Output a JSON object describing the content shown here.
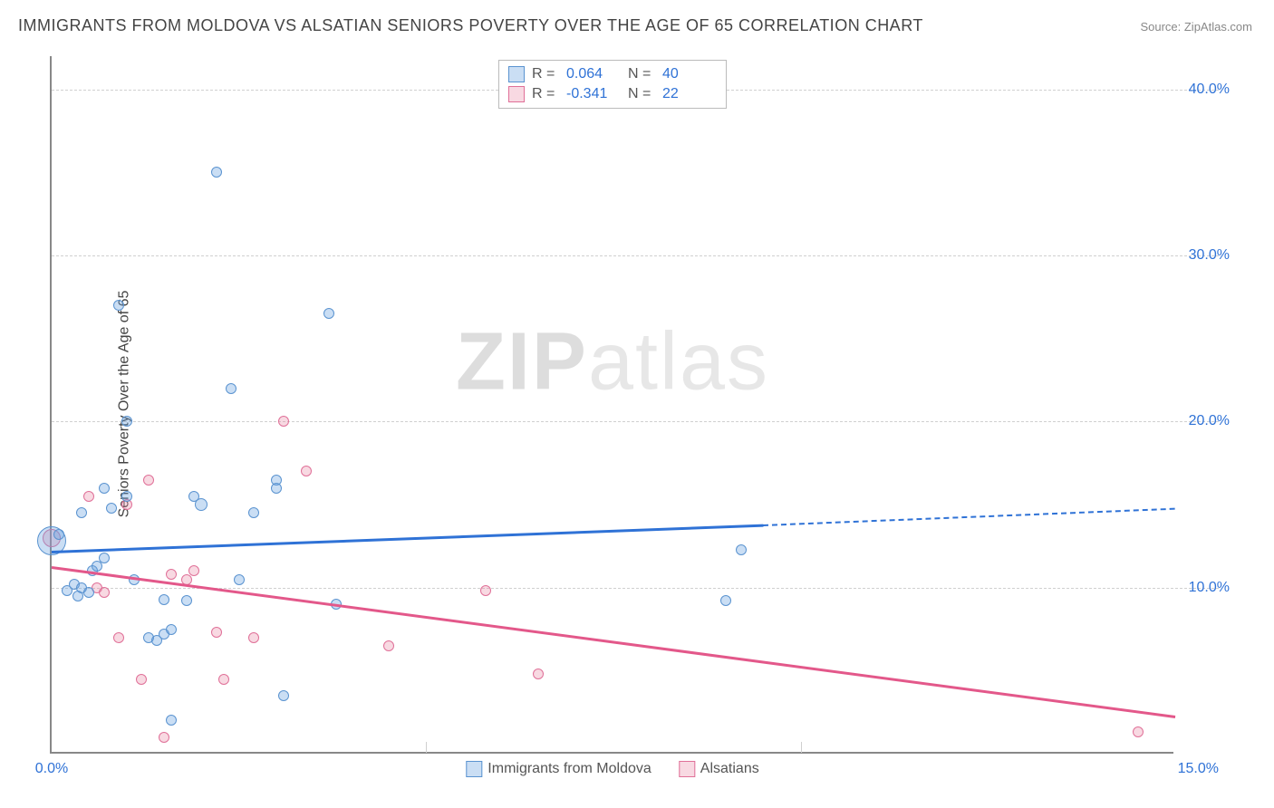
{
  "title": "IMMIGRANTS FROM MOLDOVA VS ALSATIAN SENIORS POVERTY OVER THE AGE OF 65 CORRELATION CHART",
  "source_label": "Source: ",
  "source_name": "ZipAtlas.com",
  "ylabel": "Seniors Poverty Over the Age of 65",
  "watermark_a": "ZIP",
  "watermark_b": "atlas",
  "chart": {
    "type": "scatter",
    "xlim": [
      0,
      15
    ],
    "ylim": [
      0,
      42
    ],
    "y_ticks": [
      10,
      20,
      30,
      40
    ],
    "y_tick_labels": [
      "10.0%",
      "20.0%",
      "30.0%",
      "40.0%"
    ],
    "x_ticks_major": [
      5,
      10
    ],
    "x_tick_left": "0.0%",
    "x_tick_right": "15.0%",
    "grid_color": "#d0d0d0",
    "axis_color": "#888888",
    "tick_label_color": "#2f72d6",
    "background_color": "#ffffff"
  },
  "series": {
    "blue": {
      "name": "Immigrants from Moldova",
      "fill": "rgba(102,160,224,0.35)",
      "stroke": "#5a93d0",
      "line_color": "#2f72d6",
      "R": "0.064",
      "N": "40",
      "points": [
        {
          "x": 0.0,
          "y": 12.8,
          "r": 16
        },
        {
          "x": 0.1,
          "y": 13.2,
          "r": 6
        },
        {
          "x": 0.2,
          "y": 9.8,
          "r": 6
        },
        {
          "x": 0.3,
          "y": 10.2,
          "r": 6
        },
        {
          "x": 0.35,
          "y": 9.5,
          "r": 6
        },
        {
          "x": 0.4,
          "y": 10.0,
          "r": 6
        },
        {
          "x": 0.4,
          "y": 14.5,
          "r": 6
        },
        {
          "x": 0.5,
          "y": 9.7,
          "r": 6
        },
        {
          "x": 0.55,
          "y": 11.0,
          "r": 6
        },
        {
          "x": 0.6,
          "y": 11.3,
          "r": 6
        },
        {
          "x": 0.7,
          "y": 16.0,
          "r": 6
        },
        {
          "x": 0.7,
          "y": 11.8,
          "r": 6
        },
        {
          "x": 0.8,
          "y": 14.8,
          "r": 6
        },
        {
          "x": 0.9,
          "y": 27.0,
          "r": 6
        },
        {
          "x": 1.0,
          "y": 15.5,
          "r": 6
        },
        {
          "x": 1.0,
          "y": 20.0,
          "r": 6
        },
        {
          "x": 1.1,
          "y": 10.5,
          "r": 6
        },
        {
          "x": 1.3,
          "y": 7.0,
          "r": 6
        },
        {
          "x": 1.4,
          "y": 6.8,
          "r": 6
        },
        {
          "x": 1.5,
          "y": 7.2,
          "r": 6
        },
        {
          "x": 1.5,
          "y": 9.3,
          "r": 6
        },
        {
          "x": 1.6,
          "y": 2.0,
          "r": 6
        },
        {
          "x": 1.6,
          "y": 7.5,
          "r": 6
        },
        {
          "x": 1.8,
          "y": 9.2,
          "r": 6
        },
        {
          "x": 1.9,
          "y": 15.5,
          "r": 6
        },
        {
          "x": 2.0,
          "y": 15.0,
          "r": 7
        },
        {
          "x": 2.2,
          "y": 35.0,
          "r": 6
        },
        {
          "x": 2.4,
          "y": 22.0,
          "r": 6
        },
        {
          "x": 2.5,
          "y": 10.5,
          "r": 6
        },
        {
          "x": 2.7,
          "y": 14.5,
          "r": 6
        },
        {
          "x": 3.0,
          "y": 16.5,
          "r": 6
        },
        {
          "x": 3.0,
          "y": 16.0,
          "r": 6
        },
        {
          "x": 3.1,
          "y": 3.5,
          "r": 6
        },
        {
          "x": 3.7,
          "y": 26.5,
          "r": 6
        },
        {
          "x": 3.8,
          "y": 9.0,
          "r": 6
        },
        {
          "x": 9.0,
          "y": 9.2,
          "r": 6
        },
        {
          "x": 9.2,
          "y": 12.3,
          "r": 6
        }
      ],
      "trend": {
        "x1": 0,
        "y1": 12.2,
        "x2": 9.5,
        "y2": 13.8,
        "dash_to_x": 15,
        "dash_to_y": 14.8
      }
    },
    "pink": {
      "name": "Alsatians",
      "fill": "rgba(232,128,160,0.3)",
      "stroke": "#e07098",
      "line_color": "#e3588a",
      "R": "-0.341",
      "N": "22",
      "points": [
        {
          "x": 0.0,
          "y": 13.0,
          "r": 10
        },
        {
          "x": 0.5,
          "y": 15.5,
          "r": 6
        },
        {
          "x": 0.6,
          "y": 10.0,
          "r": 6
        },
        {
          "x": 0.7,
          "y": 9.7,
          "r": 6
        },
        {
          "x": 0.9,
          "y": 7.0,
          "r": 6
        },
        {
          "x": 1.0,
          "y": 15.0,
          "r": 6
        },
        {
          "x": 1.2,
          "y": 4.5,
          "r": 6
        },
        {
          "x": 1.3,
          "y": 16.5,
          "r": 6
        },
        {
          "x": 1.5,
          "y": 1.0,
          "r": 6
        },
        {
          "x": 1.6,
          "y": 10.8,
          "r": 6
        },
        {
          "x": 1.8,
          "y": 10.5,
          "r": 6
        },
        {
          "x": 1.9,
          "y": 11.0,
          "r": 6
        },
        {
          "x": 2.2,
          "y": 7.3,
          "r": 6
        },
        {
          "x": 2.3,
          "y": 4.5,
          "r": 6
        },
        {
          "x": 2.7,
          "y": 7.0,
          "r": 6
        },
        {
          "x": 3.1,
          "y": 20.0,
          "r": 6
        },
        {
          "x": 3.4,
          "y": 17.0,
          "r": 6
        },
        {
          "x": 4.5,
          "y": 6.5,
          "r": 6
        },
        {
          "x": 5.8,
          "y": 9.8,
          "r": 6
        },
        {
          "x": 6.5,
          "y": 4.8,
          "r": 6
        },
        {
          "x": 14.5,
          "y": 1.3,
          "r": 6
        }
      ],
      "trend": {
        "x1": 0,
        "y1": 11.3,
        "x2": 15,
        "y2": 2.3
      }
    }
  },
  "legend_top": {
    "r_label": "R  =",
    "n_label": "N  ="
  }
}
